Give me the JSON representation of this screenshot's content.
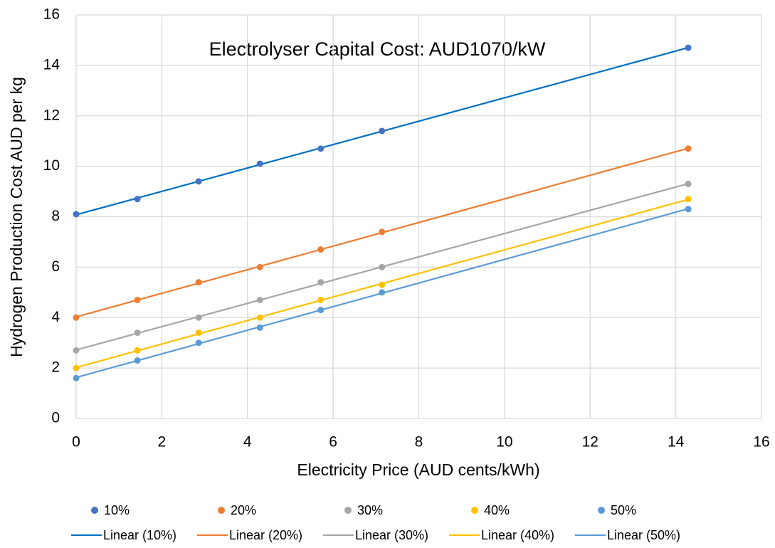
{
  "chart_data": {
    "type": "scatter",
    "title": "Electrolyser Capital Cost: AUD1070/kW",
    "x_label": "Electricity Price (AUD cents/kWh)",
    "y_label": "Hydrogen Production Cost AUD per kg",
    "x": [
      0,
      1.43,
      2.86,
      4.29,
      5.71,
      7.14,
      14.29
    ],
    "series": [
      {
        "name": "10%",
        "color": "#4472c4",
        "line_color": "#0070c0",
        "trendline": "Linear (10%)",
        "values": [
          8.1,
          8.7,
          9.4,
          10.1,
          10.7,
          11.4,
          14.7
        ]
      },
      {
        "name": "20%",
        "color": "#ed7d31",
        "line_color": "#ed7d31",
        "trendline": "Linear (20%)",
        "values": [
          4.0,
          4.7,
          5.4,
          6.0,
          6.7,
          7.4,
          10.7
        ]
      },
      {
        "name": "30%",
        "color": "#a5a5a5",
        "line_color": "#a5a5a5",
        "trendline": "Linear (30%)",
        "values": [
          2.7,
          3.4,
          4.0,
          4.7,
          5.4,
          6.0,
          9.3
        ]
      },
      {
        "name": "40%",
        "color": "#ffc000",
        "line_color": "#ffc000",
        "trendline": "Linear (40%)",
        "values": [
          2.0,
          2.7,
          3.4,
          4.0,
          4.7,
          5.3,
          8.7
        ]
      },
      {
        "name": "50%",
        "color": "#5b9bd5",
        "line_color": "#5b9bd5",
        "trendline": "Linear (50%)",
        "values": [
          1.6,
          2.3,
          3.0,
          3.6,
          4.3,
          5.0,
          8.3
        ]
      }
    ],
    "xlim": [
      0,
      16
    ],
    "xticks": [
      0,
      2,
      4,
      6,
      8,
      10,
      12,
      14,
      16
    ],
    "ylim": [
      0,
      16
    ],
    "yticks": [
      0,
      2,
      4,
      6,
      8,
      10,
      12,
      14,
      16
    ],
    "grid": true,
    "legend": "bottom"
  }
}
